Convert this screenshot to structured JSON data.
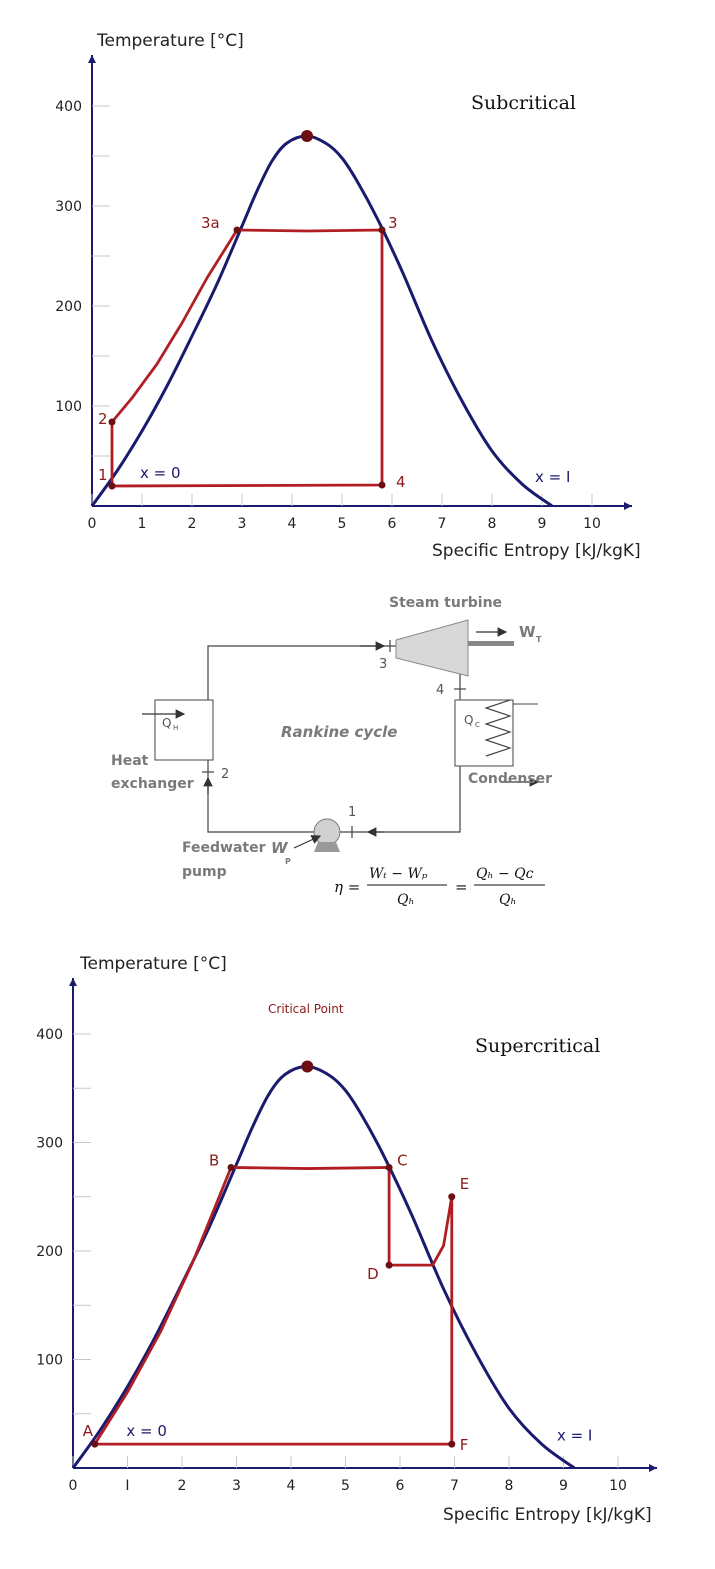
{
  "chart_data": [
    {
      "type": "line",
      "title": "Subcritical",
      "xlabel": "Specific Entropy [kJ/kgK]",
      "ylabel": "Temperature [°C]",
      "xlim": [
        0,
        11
      ],
      "ylim": [
        0,
        450
      ],
      "x_ticks": [
        "0",
        "1",
        "2",
        "3",
        "4",
        "5",
        "6",
        "7",
        "8",
        "9",
        "10"
      ],
      "y_ticks": [
        "100",
        "200",
        "300",
        "400"
      ],
      "dome": [
        [
          0,
          0
        ],
        [
          0.5,
          35
        ],
        [
          1,
          75
        ],
        [
          1.5,
          120
        ],
        [
          2,
          170
        ],
        [
          2.5,
          222
        ],
        [
          3,
          280
        ],
        [
          3.3,
          315
        ],
        [
          3.6,
          345
        ],
        [
          3.9,
          363
        ],
        [
          4.3,
          370
        ],
        [
          4.7,
          362
        ],
        [
          5,
          348
        ],
        [
          5.3,
          325
        ],
        [
          5.7,
          288
        ],
        [
          6.2,
          235
        ],
        [
          6.8,
          165
        ],
        [
          7.4,
          105
        ],
        [
          8,
          55
        ],
        [
          8.6,
          22
        ],
        [
          9.2,
          0
        ]
      ],
      "cycle": [
        [
          0.4,
          20
        ],
        [
          0.4,
          84
        ],
        [
          0.8,
          108
        ],
        [
          1.3,
          142
        ],
        [
          1.8,
          183
        ],
        [
          2.3,
          228
        ],
        [
          2.9,
          276
        ],
        [
          4.3,
          275
        ],
        [
          5.8,
          276
        ],
        [
          5.8,
          21
        ],
        [
          0.4,
          20
        ]
      ],
      "points": [
        {
          "label": "1",
          "x": 0.4,
          "y": 20
        },
        {
          "label": "2",
          "x": 0.4,
          "y": 84
        },
        {
          "label": "3a",
          "x": 2.9,
          "y": 276
        },
        {
          "label": "3",
          "x": 5.8,
          "y": 276
        },
        {
          "label": "4",
          "x": 5.8,
          "y": 21
        }
      ],
      "critical_point": {
        "x": 4.3,
        "y": 370
      },
      "annotations": [
        {
          "text": "x = 0",
          "x": 1.2,
          "y": 33
        },
        {
          "text": "x = I",
          "x": 9.1,
          "y": 29
        }
      ],
      "colors": {
        "dome": "#1a1a6e",
        "cycle": "#b01e24",
        "points": "#6b0f12"
      }
    },
    {
      "type": "line",
      "title": "Supercritical",
      "annotation_top": "Critical Point",
      "xlabel": "Specific Entropy [kJ/kgK]",
      "ylabel": "Temperature [°C]",
      "xlim": [
        0,
        11
      ],
      "ylim": [
        0,
        450
      ],
      "x_ticks": [
        "0",
        "I",
        "2",
        "3",
        "4",
        "5",
        "6",
        "7",
        "8",
        "9",
        "10"
      ],
      "y_ticks": [
        "100",
        "200",
        "300",
        "400"
      ],
      "dome": [
        [
          0,
          0
        ],
        [
          0.5,
          35
        ],
        [
          1,
          75
        ],
        [
          1.5,
          120
        ],
        [
          2,
          170
        ],
        [
          2.5,
          222
        ],
        [
          3,
          280
        ],
        [
          3.3,
          315
        ],
        [
          3.6,
          345
        ],
        [
          3.9,
          363
        ],
        [
          4.3,
          370
        ],
        [
          4.7,
          362
        ],
        [
          5,
          348
        ],
        [
          5.3,
          325
        ],
        [
          5.7,
          288
        ],
        [
          6.2,
          235
        ],
        [
          6.8,
          165
        ],
        [
          7.4,
          105
        ],
        [
          8,
          55
        ],
        [
          8.6,
          22
        ],
        [
          9.2,
          0
        ]
      ],
      "cycle": [
        [
          0.4,
          22
        ],
        [
          1,
          70
        ],
        [
          1.6,
          125
        ],
        [
          2.2,
          190
        ],
        [
          2.9,
          277
        ],
        [
          4.3,
          276
        ],
        [
          5.8,
          277
        ],
        [
          5.8,
          187
        ],
        [
          6.6,
          187
        ],
        [
          6.8,
          205
        ],
        [
          6.95,
          250
        ],
        [
          6.95,
          22
        ],
        [
          0.4,
          22
        ]
      ],
      "points": [
        {
          "label": "A",
          "x": 0.4,
          "y": 22
        },
        {
          "label": "B",
          "x": 2.9,
          "y": 277
        },
        {
          "label": "C",
          "x": 5.8,
          "y": 277
        },
        {
          "label": "D",
          "x": 5.8,
          "y": 187
        },
        {
          "label": "E",
          "x": 6.95,
          "y": 250
        },
        {
          "label": "F",
          "x": 6.95,
          "y": 22
        }
      ],
      "critical_point": {
        "x": 4.3,
        "y": 370
      },
      "annotations": [
        {
          "text": "x = 0",
          "x": 1.2,
          "y": 34
        },
        {
          "text": "x = I",
          "x": 9.1,
          "y": 30
        }
      ],
      "colors": {
        "dome": "#1a1a6e",
        "cycle": "#b01e24",
        "points": "#6b0f12"
      }
    }
  ],
  "schematic": {
    "title": "Rankine cycle",
    "turbine_label": "Steam turbine",
    "work_turbine": "W",
    "work_turbine_sub": "T",
    "heat_in": "Q",
    "heat_in_sub": "H",
    "heat_out": "Q",
    "heat_out_sub": "C",
    "exchanger_label_1": "Heat",
    "exchanger_label_2": "exchanger",
    "condenser_label": "Condenser",
    "pump_label_1": "Feedwater",
    "pump_label_2": "pump",
    "work_pump": "W",
    "work_pump_sub": "P",
    "state_1": "1",
    "state_2": "2",
    "state_3": "3",
    "state_4": "4",
    "equation_lhs": "η =",
    "equation_num_1": "Wₜ − Wₚ",
    "equation_den_1": "Qₕ",
    "equation_eq": "=",
    "equation_num_2": "Qₕ − Qᴄ",
    "equation_den_2": "Qₕ"
  },
  "colors": {
    "line_gray": "#555555",
    "turbine_fill": "#d8d8d8"
  }
}
